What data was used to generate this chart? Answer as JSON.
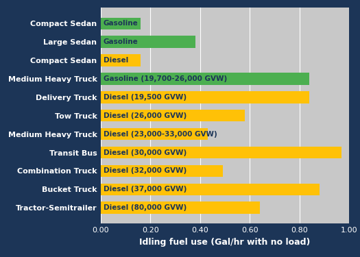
{
  "categories": [
    "Compact Sedan",
    "Large Sedan",
    "Compact Sedan",
    "Medium Heavy Truck",
    "Delivery Truck",
    "Tow Truck",
    "Medium Heavy Truck",
    "Transit Bus",
    "Combination Truck",
    "Bucket Truck",
    "Tractor-Semitrailer"
  ],
  "bar_labels": [
    "Gasoline",
    "Gasoline",
    "Diesel",
    "Gasoline (19,700-26,000 GVW)",
    "Diesel (19,500 GVW)",
    "Diesel (26,000 GVW)",
    "Diesel (23,000-33,000 GVW)",
    "Diesel (30,000 GVW)",
    "Diesel (32,000 GVW)",
    "Diesel (37,000 GVW)",
    "Diesel (80,000 GVW)"
  ],
  "values": [
    0.16,
    0.38,
    0.16,
    0.84,
    0.84,
    0.58,
    0.43,
    0.97,
    0.49,
    0.88,
    0.64
  ],
  "bar_colors": [
    "#4caf50",
    "#4caf50",
    "#ffc107",
    "#4caf50",
    "#ffc107",
    "#ffc107",
    "#ffc107",
    "#ffc107",
    "#ffc107",
    "#ffc107",
    "#ffc107"
  ],
  "xlabel": "Idling fuel use (Gal/hr with no load)",
  "xlim": [
    0.0,
    1.0
  ],
  "xticks": [
    0.0,
    0.2,
    0.4,
    0.6,
    0.8,
    1.0
  ],
  "background_color": "#1c3557",
  "plot_bg_color": "#c8c8c8",
  "label_color": "#ffffff",
  "bar_label_color": "#1c3557",
  "xlabel_color": "#ffffff",
  "tick_color": "#ffffff",
  "label_fontsize": 8,
  "bar_label_fontsize": 7.5,
  "xlabel_fontsize": 9
}
